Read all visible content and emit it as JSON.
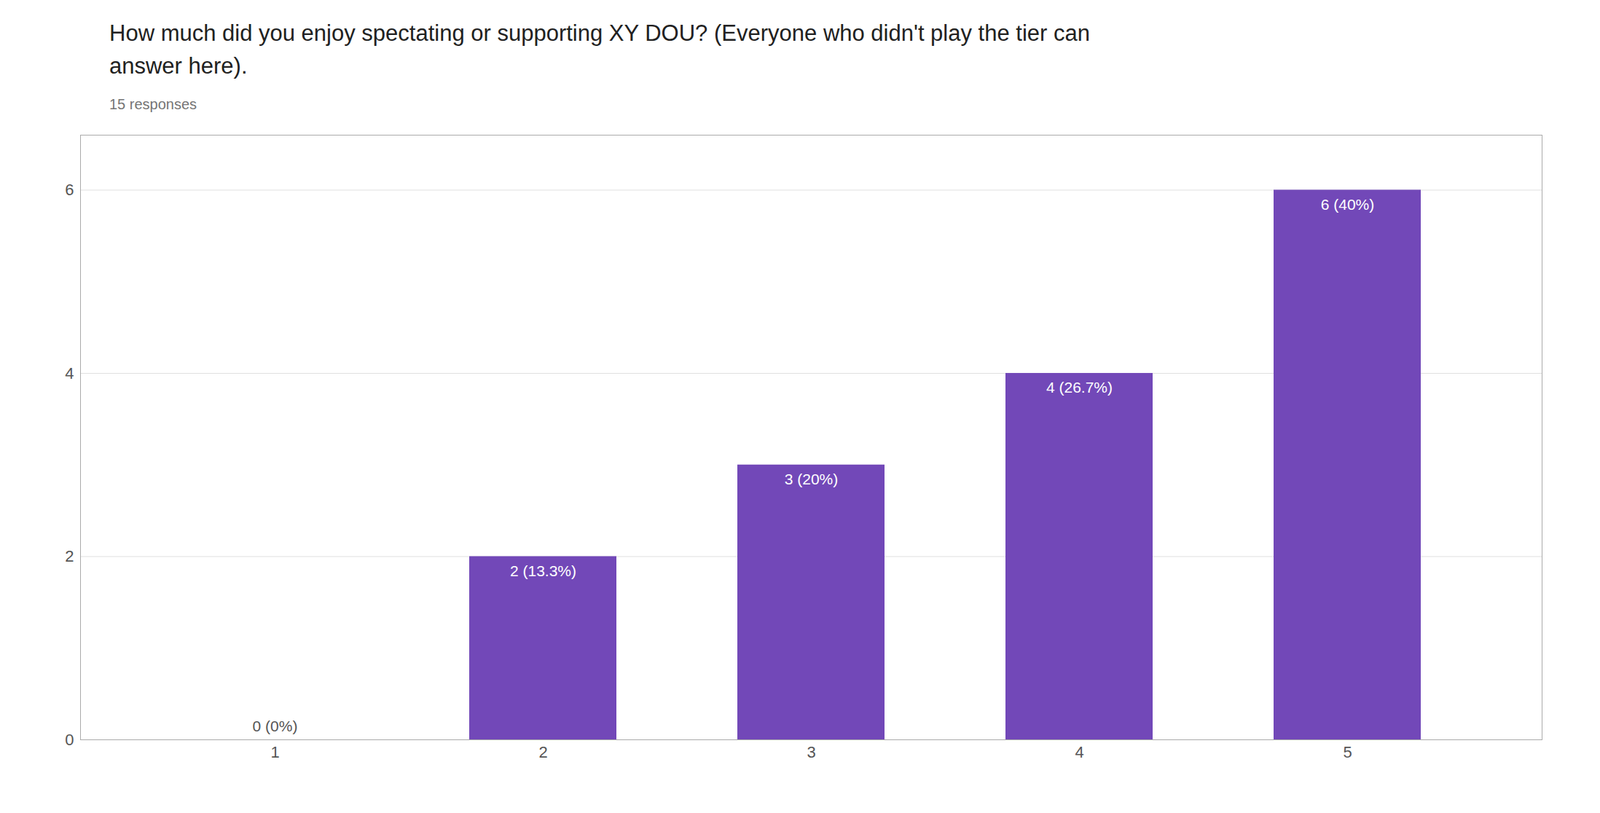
{
  "chart_data": {
    "type": "bar",
    "title": "How much did you enjoy spectating or supporting XY DOU? (Everyone who didn't play the tier can\nanswer here).",
    "subtitle": "15 responses",
    "categories": [
      1,
      2,
      3,
      4,
      5
    ],
    "values": [
      0,
      2,
      3,
      4,
      6
    ],
    "value_labels": [
      "0 (0%)",
      "2 (13.3%)",
      "3 (20%)",
      "4 (26.7%)",
      "6 (40%)"
    ],
    "data_labels": true,
    "color": "#7248b8",
    "ylim": [
      0,
      6.6
    ],
    "yticks": [
      0,
      2,
      4,
      6
    ],
    "grid": true
  }
}
